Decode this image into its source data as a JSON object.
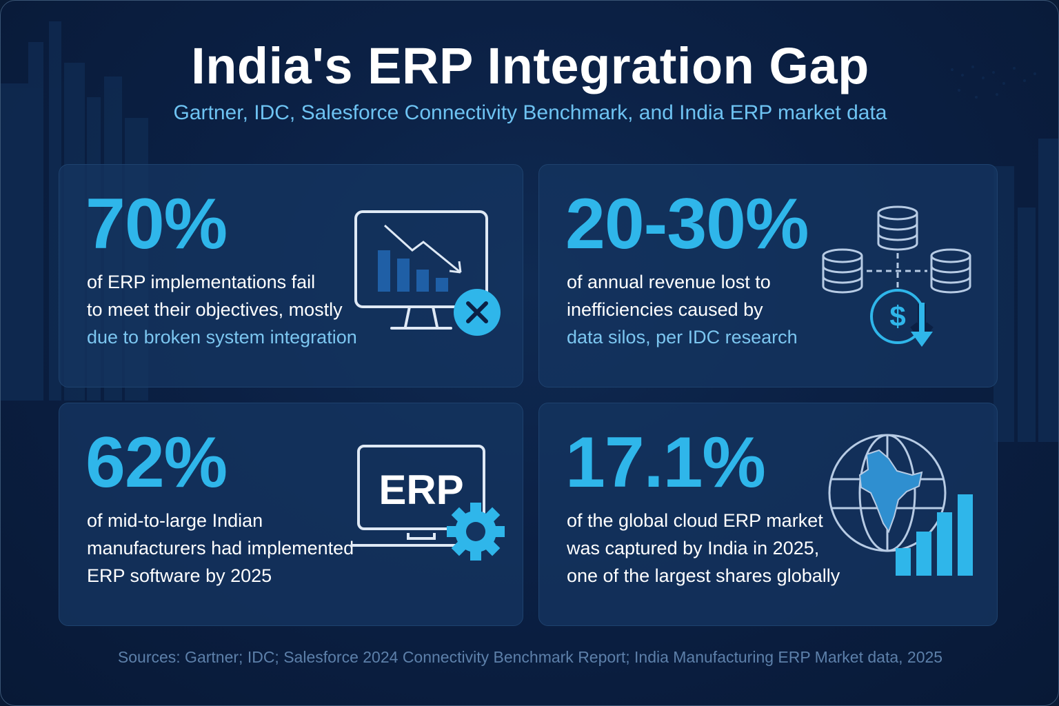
{
  "header": {
    "title": "India's ERP Integration Gap",
    "subtitle": "Gartner, IDC, Salesforce Connectivity Benchmark, and India ERP market data"
  },
  "cards": [
    {
      "stat": "70%",
      "lines": [
        "of ERP implementations fail",
        "to meet their objectives, mostly",
        "due to broken system integration"
      ],
      "icon": "monitor-declining-chart-error-icon"
    },
    {
      "stat": "20-30%",
      "lines": [
        "of annual revenue lost to",
        "inefficiencies caused by",
        "data silos, per IDC research"
      ],
      "icon": "database-silos-dollar-loss-icon"
    },
    {
      "stat": "62%",
      "lines": [
        "of mid-to-large Indian",
        "manufacturers had implemented",
        "ERP software by 2025"
      ],
      "icon": "erp-laptop-gear-icon",
      "icon_text": "ERP"
    },
    {
      "stat": "17.1%",
      "lines": [
        "of the global cloud ERP market",
        "was captured by India in 2025,",
        "one of the largest shares globally"
      ],
      "icon": "globe-india-growth-bars-icon"
    }
  ],
  "footer": {
    "sources": "Sources: Gartner; IDC; Salesforce 2024 Connectivity Benchmark Report; India Manufacturing ERP Market data, 2025"
  },
  "colors": {
    "background": "#0b2044",
    "card": "#143460",
    "accent": "#2fb6ea",
    "highlight_text": "#7cc6f0",
    "subtitle": "#6ec3f2",
    "footer": "#5d80aa"
  }
}
